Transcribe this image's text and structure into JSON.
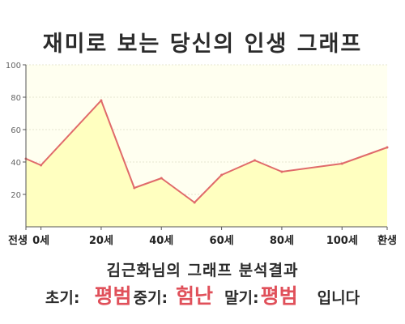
{
  "title": "재미로 보는 당신의 인생 그래프",
  "subtitle": "김근화님의 그래프 분석결과",
  "summary": {
    "early_label": "초기:",
    "early_value": "평범",
    "mid_label": "중기:",
    "mid_value": "험난",
    "late_label": "말기:",
    "late_value": "평범",
    "ending": "입니다"
  },
  "colors": {
    "line": "#e06a6a",
    "fill": "#ffffc0",
    "plot_bg": "#fffff0",
    "accent_text": "#e0505a"
  },
  "chart_data": {
    "type": "area",
    "ylim": [
      0,
      100
    ],
    "yticks": [
      20,
      40,
      60,
      80,
      100
    ],
    "xticks": [
      {
        "x": -5,
        "label": "전생"
      },
      {
        "x": 0,
        "label": "0세"
      },
      {
        "x": 20,
        "label": "20세"
      },
      {
        "x": 40,
        "label": "40세"
      },
      {
        "x": 60,
        "label": "60세"
      },
      {
        "x": 80,
        "label": "80세"
      },
      {
        "x": 100,
        "label": "100세"
      },
      {
        "x": 115,
        "label": "환생"
      }
    ],
    "xlim": [
      -5,
      115
    ],
    "grid": true,
    "series": [
      {
        "points": [
          {
            "x": -5,
            "y": 42
          },
          {
            "x": 0,
            "y": 38
          },
          {
            "x": 20,
            "y": 78
          },
          {
            "x": 31,
            "y": 24
          },
          {
            "x": 40,
            "y": 30
          },
          {
            "x": 51,
            "y": 15
          },
          {
            "x": 60,
            "y": 32
          },
          {
            "x": 71,
            "y": 41
          },
          {
            "x": 80,
            "y": 34
          },
          {
            "x": 100,
            "y": 39
          },
          {
            "x": 115,
            "y": 49
          }
        ]
      }
    ]
  }
}
